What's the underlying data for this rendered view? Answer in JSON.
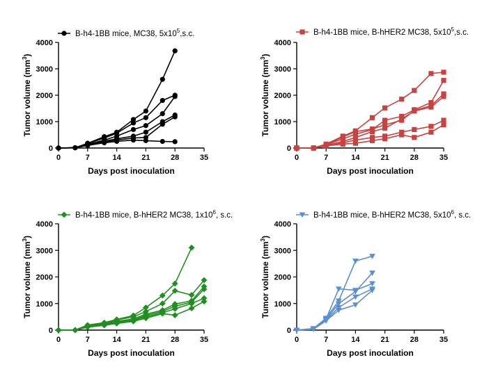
{
  "chart_data": [
    {
      "type": "line",
      "title": "",
      "legend": {
        "text": "B-h4-1BB mice, MC38, 5x10",
        "sup": "5",
        "suffix": ",s.c."
      },
      "color": "#000000",
      "marker": "circle",
      "xlabel": "Days post inoculation",
      "ylabel": {
        "text": "Tumor volume (mm",
        "sup": "3",
        "suffix": ")"
      },
      "xlim": [
        0,
        35
      ],
      "ylim": [
        0,
        4000
      ],
      "xticks": [
        0,
        7,
        14,
        21,
        28,
        35
      ],
      "yticks": [
        0,
        1000,
        2000,
        3000,
        4000
      ],
      "series": [
        {
          "x": [
            0,
            4,
            7,
            11,
            14,
            18,
            21,
            25,
            28
          ],
          "y": [
            0,
            10,
            180,
            430,
            600,
            1080,
            1400,
            2600,
            3680
          ]
        },
        {
          "x": [
            0,
            4,
            7,
            11,
            14,
            18,
            21,
            25,
            28
          ],
          "y": [
            0,
            10,
            170,
            380,
            560,
            950,
            1150,
            1800,
            2000
          ]
        },
        {
          "x": [
            0,
            4,
            7,
            11,
            14,
            18,
            21,
            25,
            28
          ],
          "y": [
            0,
            10,
            140,
            300,
            450,
            700,
            850,
            1300,
            1950
          ]
        },
        {
          "x": [
            0,
            4,
            7,
            11,
            14,
            18,
            21,
            25,
            28
          ],
          "y": [
            0,
            10,
            120,
            260,
            350,
            450,
            600,
            1000,
            1250
          ]
        },
        {
          "x": [
            0,
            4,
            7,
            11,
            14,
            18,
            21,
            25,
            28
          ],
          "y": [
            0,
            10,
            100,
            220,
            300,
            380,
            400,
            900,
            1180
          ]
        },
        {
          "x": [
            0,
            4,
            7,
            11,
            14,
            18,
            21,
            25,
            28
          ],
          "y": [
            0,
            10,
            100,
            200,
            250,
            300,
            280,
            250,
            240
          ]
        }
      ]
    },
    {
      "type": "line",
      "title": "",
      "legend": {
        "text": "B-h4-1BB mice, B-hHER2 MC38, 5x10",
        "sup": "5",
        "suffix": ",s.c."
      },
      "color": "#C9423F",
      "marker": "square",
      "xlabel": "Days post inoculation",
      "ylabel": {
        "text": "Tumor volume (mm",
        "sup": "3",
        "suffix": ")"
      },
      "xlim": [
        0,
        35
      ],
      "ylim": [
        0,
        4000
      ],
      "xticks": [
        0,
        7,
        14,
        21,
        28,
        35
      ],
      "yticks": [
        0,
        1000,
        2000,
        3000,
        4000
      ],
      "series": [
        {
          "x": [
            0,
            4,
            7,
            11,
            14,
            18,
            21,
            25,
            28,
            32,
            35
          ],
          "y": [
            0,
            0,
            150,
            450,
            650,
            1150,
            1520,
            1850,
            2180,
            2820,
            2870
          ]
        },
        {
          "x": [
            0,
            4,
            7,
            11,
            14,
            18,
            21,
            25,
            28,
            32,
            35
          ],
          "y": [
            0,
            0,
            120,
            350,
            520,
            700,
            1050,
            1200,
            1450,
            1720,
            2560
          ]
        },
        {
          "x": [
            0,
            4,
            7,
            11,
            14,
            18,
            21,
            25,
            28,
            32,
            35
          ],
          "y": [
            0,
            0,
            120,
            420,
            620,
            720,
            880,
            1050,
            1420,
            1600,
            2050
          ]
        },
        {
          "x": [
            0,
            4,
            7,
            11,
            14,
            18,
            21,
            25,
            28,
            32,
            35
          ],
          "y": [
            0,
            0,
            100,
            250,
            400,
            620,
            750,
            1100,
            1400,
            1550,
            1950
          ]
        },
        {
          "x": [
            0,
            4,
            7,
            11,
            14,
            18,
            21,
            25,
            28,
            32,
            35
          ],
          "y": [
            0,
            0,
            90,
            200,
            300,
            400,
            450,
            600,
            700,
            820,
            1050
          ]
        },
        {
          "x": [
            0,
            4,
            7,
            11,
            14,
            18,
            21,
            25,
            28,
            32,
            35
          ],
          "y": [
            0,
            0,
            80,
            150,
            180,
            280,
            350,
            500,
            400,
            600,
            880
          ]
        }
      ]
    },
    {
      "type": "line",
      "title": "",
      "legend": {
        "text": "B-h4-1BB mice, B-hHER2 MC38, 1x10",
        "sup": "6",
        "suffix": ", s.c."
      },
      "color": "#1F8F1F",
      "marker": "diamond",
      "xlabel": "Days post inoculation",
      "ylabel": {
        "text": "Tumor volume (mm",
        "sup": "3",
        "suffix": ")"
      },
      "xlim": [
        0,
        35
      ],
      "ylim": [
        0,
        4000
      ],
      "xticks": [
        0,
        7,
        14,
        21,
        28,
        35
      ],
      "yticks": [
        0,
        1000,
        2000,
        3000,
        4000
      ],
      "series": [
        {
          "x": [
            0,
            4,
            7,
            11,
            14,
            18,
            21,
            25,
            28,
            32
          ],
          "y": [
            0,
            0,
            190,
            280,
            400,
            550,
            850,
            1300,
            1750,
            3100
          ]
        },
        {
          "x": [
            0,
            4,
            7,
            11,
            14,
            18,
            21,
            25,
            28,
            32,
            35
          ],
          "y": [
            0,
            0,
            180,
            260,
            380,
            500,
            700,
            1000,
            1480,
            1320,
            1880
          ]
        },
        {
          "x": [
            0,
            4,
            7,
            11,
            14,
            18,
            21,
            25,
            28,
            32,
            35
          ],
          "y": [
            0,
            0,
            160,
            240,
            330,
            420,
            600,
            750,
            980,
            1100,
            1640
          ]
        },
        {
          "x": [
            0,
            4,
            7,
            11,
            14,
            18,
            21,
            25,
            28,
            32,
            35
          ],
          "y": [
            0,
            0,
            140,
            220,
            300,
            380,
            550,
            700,
            900,
            1050,
            1540
          ]
        },
        {
          "x": [
            0,
            4,
            7,
            11,
            14,
            18,
            21,
            25,
            28,
            32,
            35
          ],
          "y": [
            0,
            0,
            120,
            200,
            280,
            360,
            500,
            650,
            800,
            1000,
            1200
          ]
        },
        {
          "x": [
            0,
            4,
            7,
            11,
            14,
            18,
            21,
            25,
            28,
            32,
            35
          ],
          "y": [
            0,
            0,
            110,
            180,
            250,
            330,
            450,
            620,
            560,
            820,
            1080
          ]
        }
      ]
    },
    {
      "type": "line",
      "title": "",
      "legend": {
        "text": "B-h4-1BB mice, B-hHER2 MC38, 5x10",
        "sup": "6",
        "suffix": ", s.c."
      },
      "color": "#5B8FD0",
      "marker": "triangle-down",
      "xlabel": "Days post inoculation",
      "ylabel": {
        "text": "Tumor volume (mm",
        "sup": "3",
        "suffix": ")"
      },
      "xlim": [
        0,
        35
      ],
      "ylim": [
        0,
        4000
      ],
      "xticks": [
        0,
        7,
        14,
        21,
        28,
        35
      ],
      "yticks": [
        0,
        1000,
        2000,
        3000,
        4000
      ],
      "series": [
        {
          "x": [
            0,
            4,
            7,
            10,
            14,
            18
          ],
          "y": [
            0,
            60,
            450,
            1100,
            2600,
            2780
          ]
        },
        {
          "x": [
            0,
            4,
            7,
            10,
            14,
            18
          ],
          "y": [
            0,
            50,
            420,
            1550,
            1500,
            1750
          ]
        },
        {
          "x": [
            0,
            4,
            7,
            10,
            14,
            18
          ],
          "y": [
            0,
            40,
            400,
            1000,
            1450,
            2150
          ]
        },
        {
          "x": [
            0,
            4,
            7,
            10,
            14,
            18
          ],
          "y": [
            0,
            40,
            380,
            850,
            1250,
            1550
          ]
        },
        {
          "x": [
            0,
            4,
            7,
            10,
            14,
            18
          ],
          "y": [
            0,
            30,
            350,
            750,
            950,
            1500
          ]
        }
      ]
    }
  ]
}
